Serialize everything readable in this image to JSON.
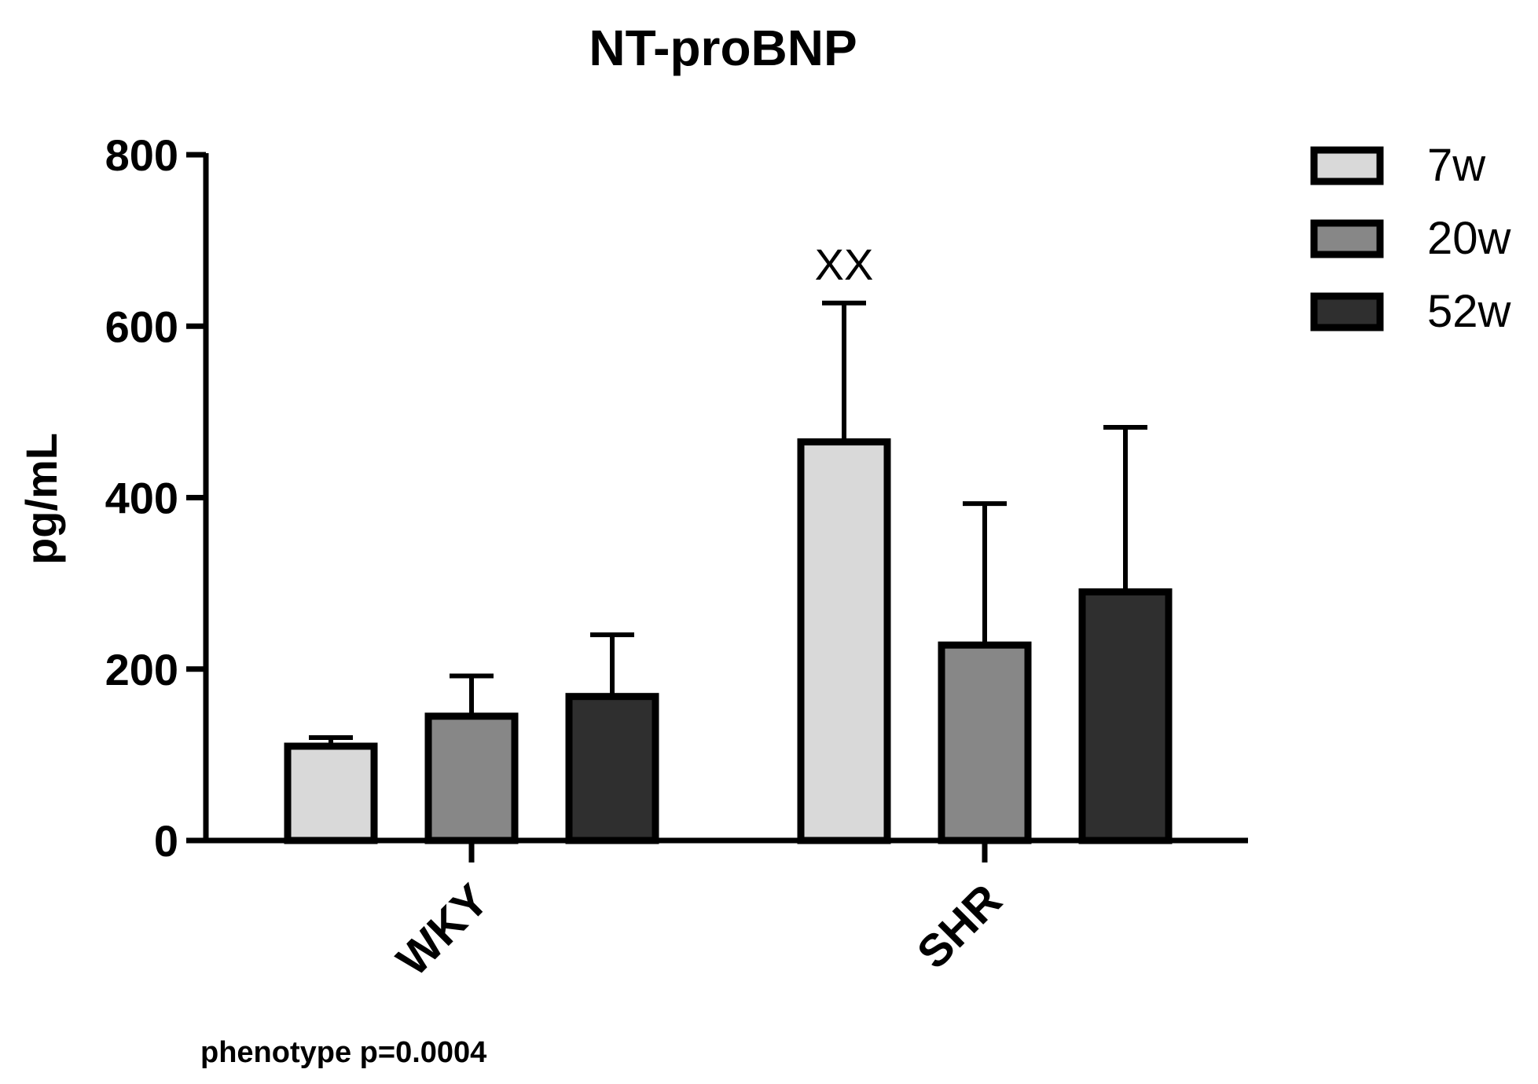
{
  "chart_data": {
    "type": "bar",
    "title": "NT-proBNP",
    "xlabel": "",
    "ylabel": "pg/mL",
    "ylim": [
      0,
      800
    ],
    "yticks": [
      0,
      200,
      400,
      600,
      800
    ],
    "categories": [
      "WKY",
      "SHR"
    ],
    "series": [
      {
        "name": "7w",
        "color": "#d9d9d9",
        "values": [
          110,
          465
        ],
        "errors": [
          10,
          162
        ]
      },
      {
        "name": "20w",
        "color": "#878787",
        "values": [
          145,
          228
        ],
        "errors": [
          47,
          165
        ]
      },
      {
        "name": "52w",
        "color": "#2f2f2f",
        "values": [
          168,
          290
        ],
        "errors": [
          72,
          192
        ]
      }
    ],
    "annotations": [
      {
        "text": "XX",
        "category": "SHR",
        "series": "7w"
      }
    ],
    "legend_position": "top-right",
    "footnote": "phenotype p=0.0004",
    "grid": false
  }
}
